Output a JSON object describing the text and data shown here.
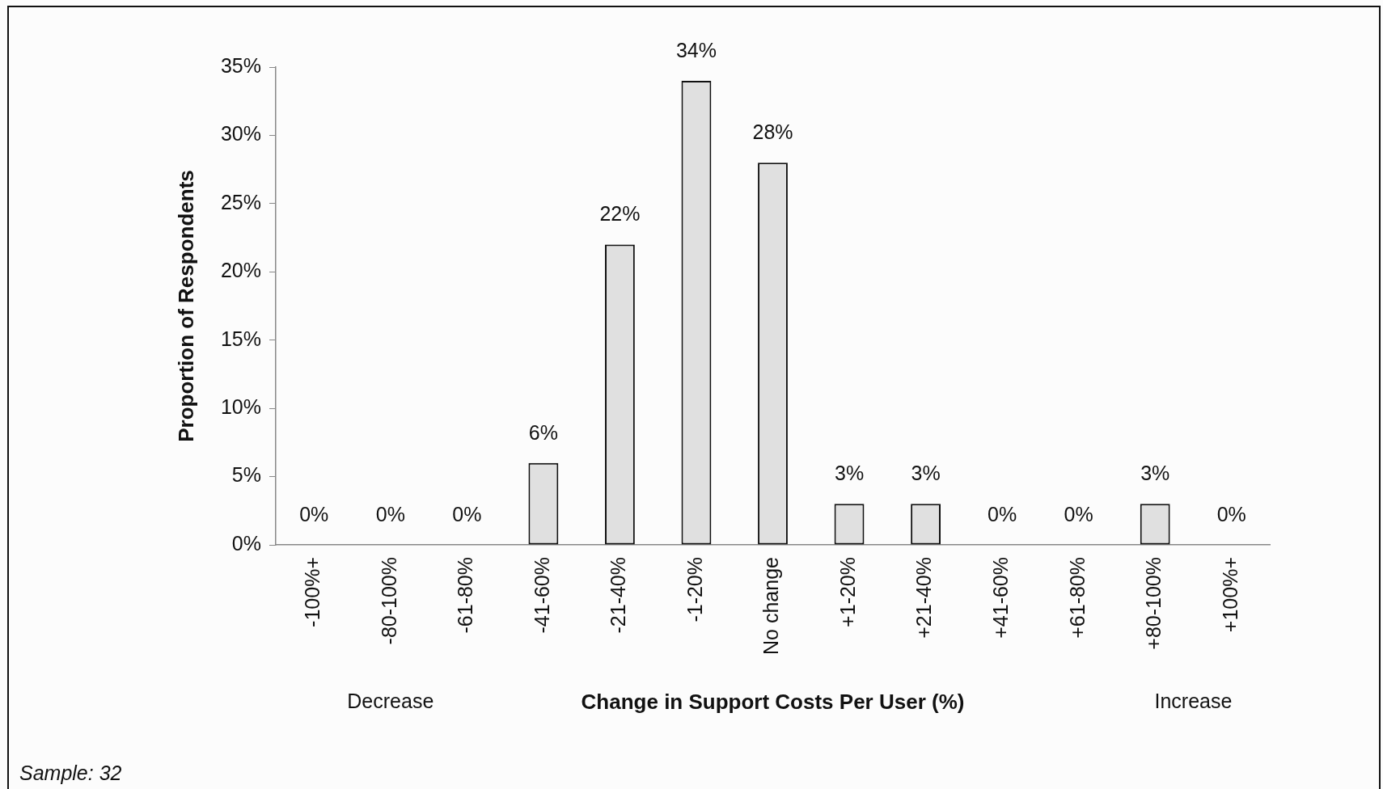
{
  "chart_data": {
    "type": "bar",
    "categories": [
      "-100%+",
      "-80-100%",
      "-61-80%",
      "-41-60%",
      "-21-40%",
      "-1-20%",
      "No change",
      "+1-20%",
      "+21-40%",
      "+41-60%",
      "+61-80%",
      "+80-100%",
      "+100%+"
    ],
    "values": [
      0,
      0,
      0,
      6,
      22,
      34,
      28,
      3,
      3,
      0,
      0,
      3,
      0
    ],
    "value_labels": [
      "0%",
      "0%",
      "0%",
      "6%",
      "22%",
      "34%",
      "28%",
      "3%",
      "3%",
      "0%",
      "0%",
      "3%",
      "0%"
    ],
    "color": "#e0e0e0",
    "xlabel": "Change in Support Costs Per User (%)",
    "ylabel": "Proportion of Respondents",
    "ylim": [
      0,
      35
    ],
    "yticks": [
      {
        "value": 0,
        "label": "0%"
      },
      {
        "value": 5,
        "label": "5%"
      },
      {
        "value": 10,
        "label": "10%"
      },
      {
        "value": 15,
        "label": "15%"
      },
      {
        "value": 20,
        "label": "20%"
      },
      {
        "value": 25,
        "label": "25%"
      },
      {
        "value": 30,
        "label": "30%"
      },
      {
        "value": 35,
        "label": "35%"
      }
    ],
    "annotations": [
      "Decrease",
      "Increase",
      "Sample: 32"
    ]
  }
}
